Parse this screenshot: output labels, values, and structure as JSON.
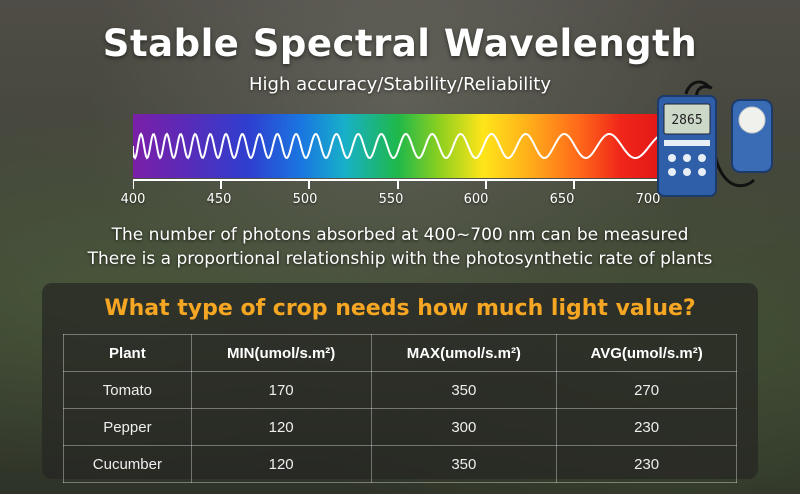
{
  "header": {
    "title": "Stable Spectral Wavelength",
    "subtitle": "High accuracy/Stability/Reliability"
  },
  "spectrum": {
    "ticks": [
      "400",
      "450",
      "500",
      "550",
      "600",
      "650",
      "700"
    ]
  },
  "device": {
    "readout": "2865"
  },
  "description": {
    "line1": "The number of photons absorbed at 400~700 nm can be measured",
    "line2": "There is a proportional relationship with the photosynthetic rate of plants"
  },
  "table": {
    "title": "What type of crop needs how much light value?",
    "headers": [
      "Plant",
      "MIN(umol/s.m²)",
      "MAX(umol/s.m²)",
      "AVG(umol/s.m²)"
    ],
    "rows": [
      [
        "Tomato",
        "170",
        "350",
        "270"
      ],
      [
        "Pepper",
        "120",
        "300",
        "230"
      ],
      [
        "Cucumber",
        "120",
        "350",
        "230"
      ]
    ]
  },
  "colors": {
    "accent": "#f5a623",
    "text": "#ffffff"
  }
}
